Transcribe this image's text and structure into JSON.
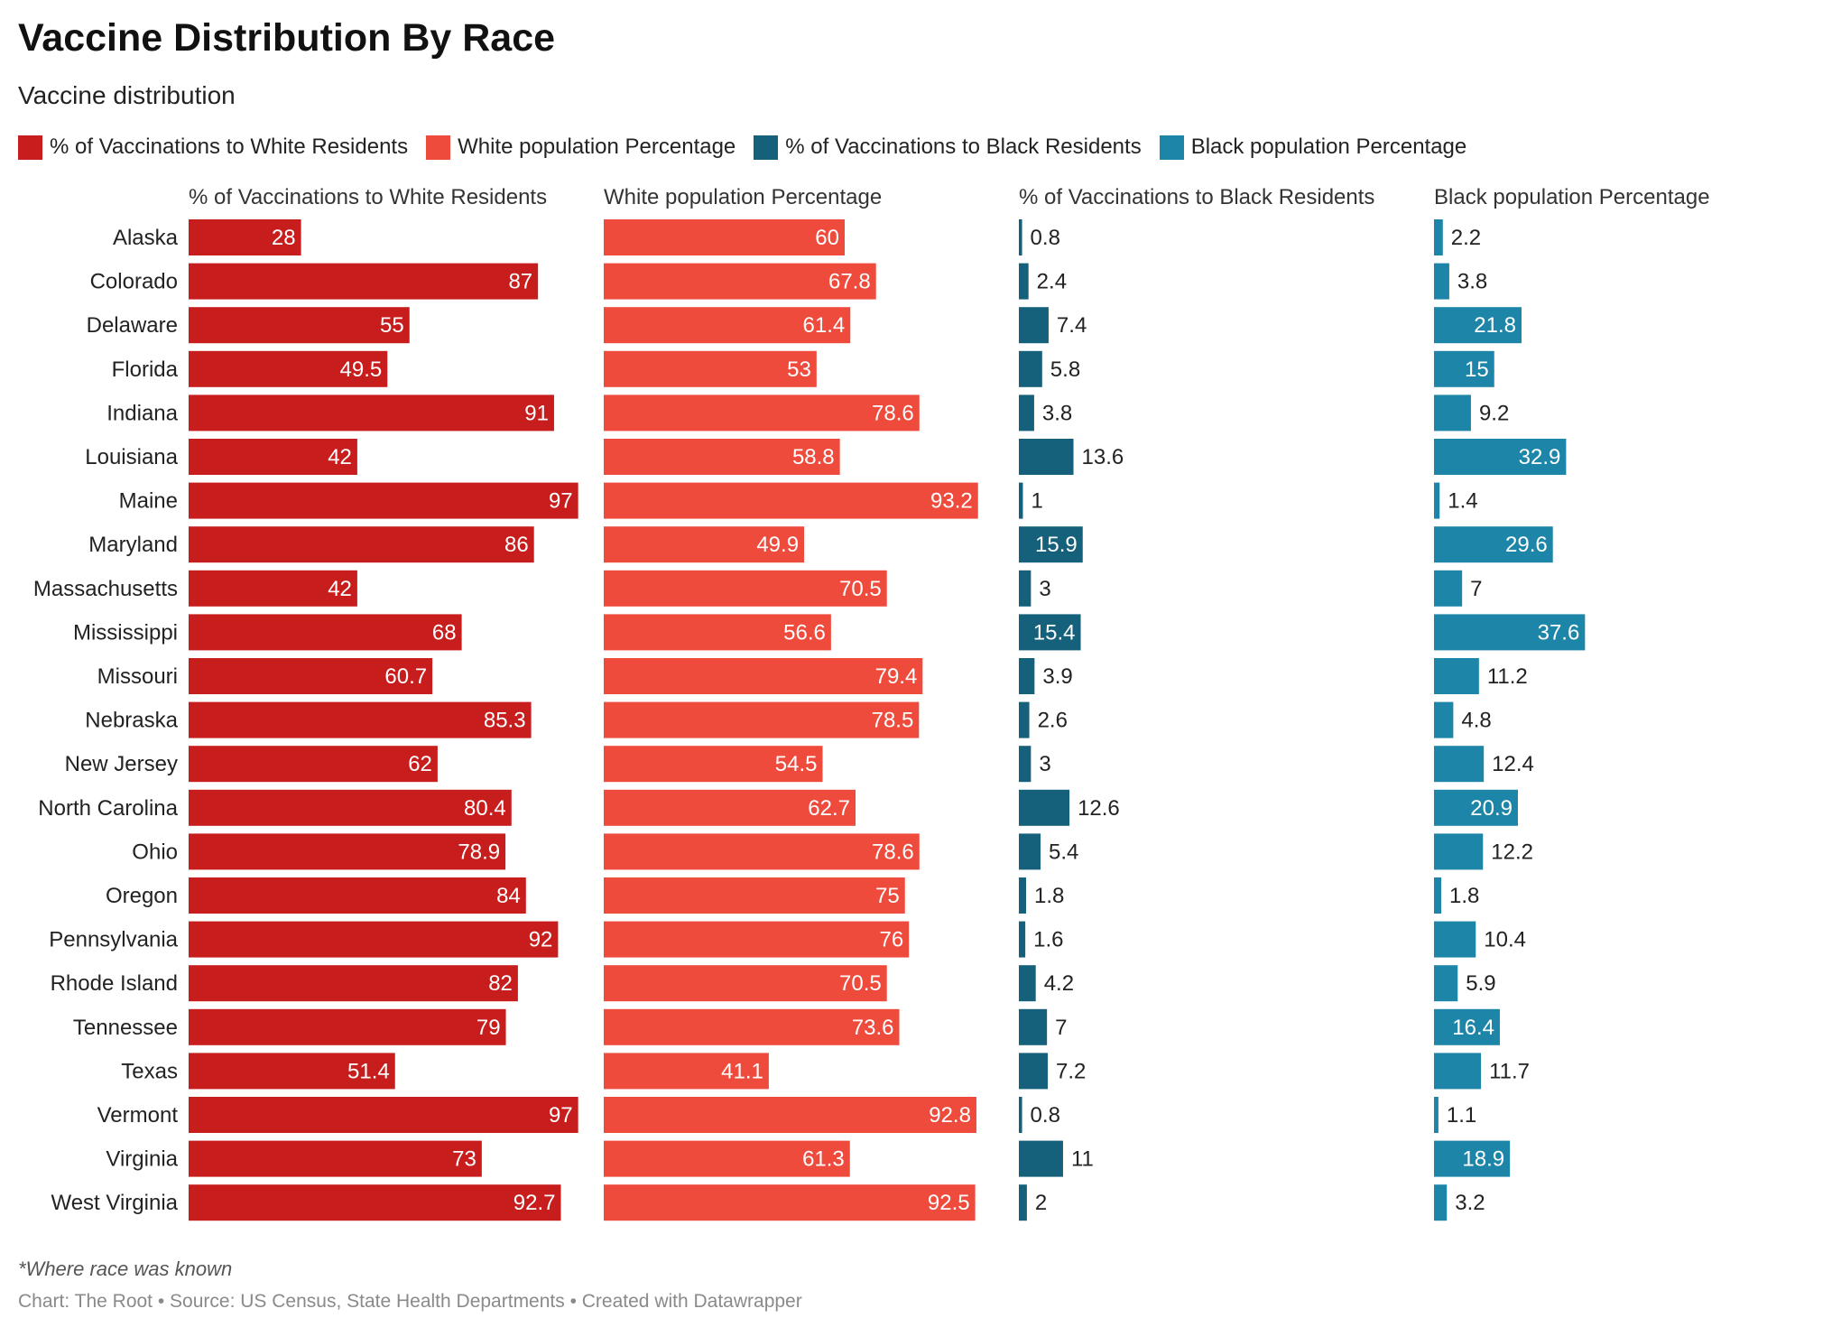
{
  "title": "Vaccine Distribution By Race",
  "subtitle": "Vaccine distribution",
  "legend": [
    {
      "label": "% of Vaccinations to White Residents",
      "color": "#c71e1d"
    },
    {
      "label": "White population Percentage",
      "color": "#ef4b3d"
    },
    {
      "label": "% of Vaccinations to Black Residents",
      "color": "#15607a"
    },
    {
      "label": "Black population Percentage",
      "color": "#1d86a8"
    }
  ],
  "chart_data": {
    "type": "bar",
    "orientation": "horizontal",
    "layout": "small-multiples",
    "categories": [
      "Alaska",
      "Colorado",
      "Delaware",
      "Florida",
      "Indiana",
      "Louisiana",
      "Maine",
      "Maryland",
      "Massachusetts",
      "Mississippi",
      "Missouri",
      "Nebraska",
      "New Jersey",
      "North Carolina",
      "Ohio",
      "Oregon",
      "Pennsylvania",
      "Rhode Island",
      "Tennessee",
      "Texas",
      "Vermont",
      "Virginia",
      "West Virginia"
    ],
    "series": [
      {
        "name": "% of Vaccinations to White Residents",
        "color": "#c71e1d",
        "values": [
          28,
          87,
          55,
          49.5,
          91,
          42,
          97,
          86,
          42,
          68,
          60.7,
          85.3,
          62,
          80.4,
          78.9,
          84,
          92,
          82,
          79,
          51.4,
          97,
          73,
          92.7
        ]
      },
      {
        "name": "White population Percentage",
        "color": "#ef4b3d",
        "values": [
          60,
          67.8,
          61.4,
          53,
          78.6,
          58.8,
          93.2,
          49.9,
          70.5,
          56.6,
          79.4,
          78.5,
          54.5,
          62.7,
          78.6,
          75,
          76,
          70.5,
          73.6,
          41.1,
          92.8,
          61.3,
          92.5
        ]
      },
      {
        "name": "% of Vaccinations to Black Residents",
        "color": "#15607a",
        "values": [
          0.8,
          2.4,
          7.4,
          5.8,
          3.8,
          13.6,
          1,
          15.9,
          3,
          15.4,
          3.9,
          2.6,
          3,
          12.6,
          5.4,
          1.8,
          1.6,
          4.2,
          7,
          7.2,
          0.8,
          11,
          2
        ]
      },
      {
        "name": "Black population Percentage",
        "color": "#1d86a8",
        "values": [
          2.2,
          3.8,
          21.8,
          15,
          9.2,
          32.9,
          1.4,
          29.6,
          7,
          37.6,
          11.2,
          4.8,
          12.4,
          20.9,
          12.2,
          1.8,
          10.4,
          5.9,
          16.4,
          11.7,
          1.1,
          18.9,
          3.2
        ]
      }
    ],
    "xlim": [
      0,
      100
    ],
    "grid": false,
    "legend_position": "top-left"
  },
  "note": "*Where race was known",
  "footer": "Chart: The Root • Source: US Census, State Health Departments • Created with Datawrapper"
}
